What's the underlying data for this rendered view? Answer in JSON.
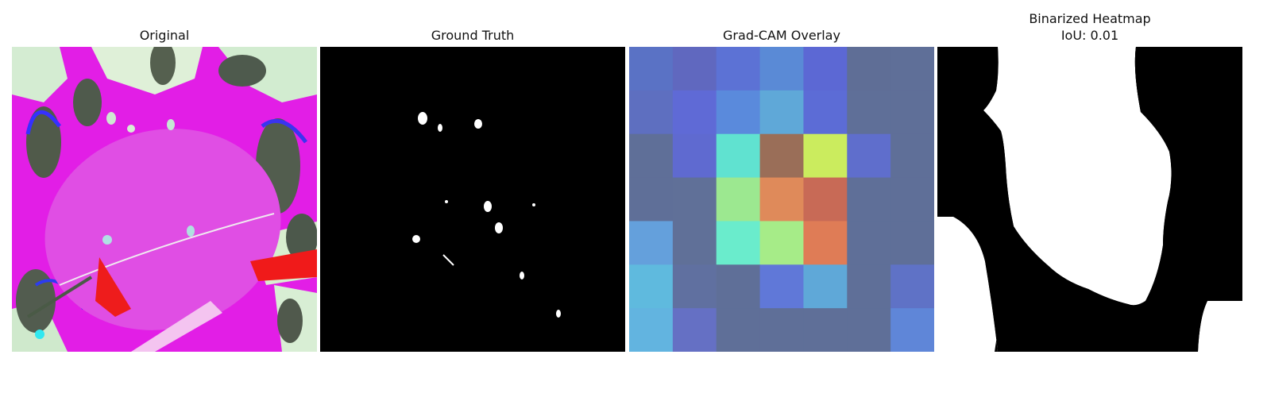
{
  "panels": [
    {
      "title": "Original"
    },
    {
      "title": "Ground Truth"
    },
    {
      "title": "Grad-CAM Overlay"
    },
    {
      "title": "Binarized Heatmap",
      "subtitle": "IoU: 0.01"
    }
  ],
  "gradcam_grid": [
    [
      "#5a72c5",
      "#6068bf",
      "#5c72d5",
      "#5a8ad6",
      "#5c68d4",
      "#5f6e96",
      "#5f6f98"
    ],
    [
      "#5e6fc0",
      "#5f6ad6",
      "#5a8adc",
      "#5fa8d8",
      "#5c6cd6",
      "#5f6f98",
      "#5f6f98"
    ],
    [
      "#5f6f98",
      "#5f6ad0",
      "#60e2d0",
      "#9a6e58",
      "#cbec5e",
      "#5f6ecc",
      "#5f6f98"
    ],
    [
      "#5f6f98",
      "#607098",
      "#9ce890",
      "#df8a5a",
      "#c86a56",
      "#5f6f98",
      "#5f6f98"
    ],
    [
      "#64a0dc",
      "#607098",
      "#6aeccc",
      "#a6ec88",
      "#df7c56",
      "#5f6f98",
      "#5f6f98"
    ],
    [
      "#5fbade",
      "#6070a0",
      "#5f6f98",
      "#6078d8",
      "#5fa8d8",
      "#5f6f98",
      "#5f72c6"
    ],
    [
      "#62b4e0",
      "#6570c4",
      "#5f6f98",
      "#5f6f98",
      "#5f6f98",
      "#5f6f98",
      "#5f86d8"
    ]
  ]
}
